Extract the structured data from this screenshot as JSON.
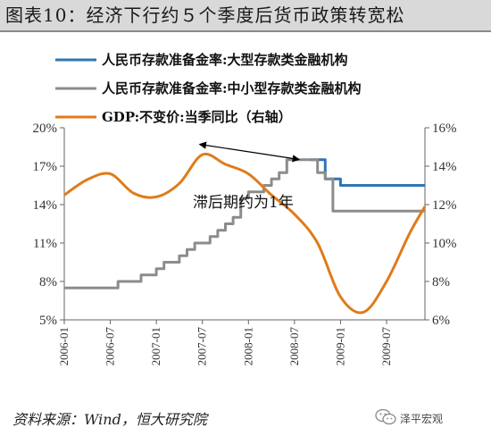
{
  "header": {
    "title": "图表10：经济下行约５个季度后货币政策转宽松"
  },
  "footer": {
    "source": "资料来源：Wind，恒大研究院",
    "brand": "泽平宏观"
  },
  "icons": {
    "brand_icon": "wechat-icon"
  },
  "chart_data": {
    "type": "line",
    "x_ticks": [
      "2006-01",
      "2006-07",
      "2007-01",
      "2007-07",
      "2008-01",
      "2008-07",
      "2009-01",
      "2009-07"
    ],
    "y_left": {
      "ticks": [
        "5%",
        "8%",
        "11%",
        "14%",
        "17%",
        "20%"
      ],
      "range": [
        5,
        20
      ],
      "unit": "%"
    },
    "y_right": {
      "ticks": [
        "6%",
        "8%",
        "10%",
        "12%",
        "14%",
        "16%"
      ],
      "range": [
        6,
        16
      ],
      "unit": "%"
    },
    "annotation": "滞后期约为1年",
    "series": [
      {
        "name": "人民币存款准备金率:大型存款类金融机构",
        "axis": "left",
        "color": "#2e75b6",
        "points": [
          [
            "2008-09",
            17.5
          ],
          [
            "2008-10",
            17.5
          ],
          [
            "2008-11",
            16.0
          ],
          [
            "2008-12",
            16.0
          ],
          [
            "2009-01",
            15.5
          ],
          [
            "2009-12",
            15.5
          ]
        ]
      },
      {
        "name": "人民币存款准备金率:中小型存款类金融机构",
        "axis": "left",
        "color": "#8c8c8c",
        "points": [
          [
            "2006-01",
            7.5
          ],
          [
            "2006-07",
            7.5
          ],
          [
            "2006-08",
            8.0
          ],
          [
            "2006-11",
            8.5
          ],
          [
            "2007-01",
            9.0
          ],
          [
            "2007-02",
            9.5
          ],
          [
            "2007-04",
            10.0
          ],
          [
            "2007-05",
            10.5
          ],
          [
            "2007-06",
            11.0
          ],
          [
            "2007-08",
            11.5
          ],
          [
            "2007-09",
            12.0
          ],
          [
            "2007-10",
            12.5
          ],
          [
            "2007-11",
            13.0
          ],
          [
            "2007-12",
            14.5
          ],
          [
            "2008-01",
            15.0
          ],
          [
            "2008-03",
            15.5
          ],
          [
            "2008-04",
            16.0
          ],
          [
            "2008-05",
            16.5
          ],
          [
            "2008-06",
            17.5
          ],
          [
            "2008-09",
            17.5
          ],
          [
            "2008-10",
            16.5
          ],
          [
            "2008-11",
            16.0
          ],
          [
            "2008-12",
            13.5
          ],
          [
            "2009-12",
            13.5
          ]
        ]
      },
      {
        "name": "GDP:不变价:当季同比（右轴）",
        "axis": "right",
        "color": "#e07b1a",
        "points": [
          [
            "2006-01",
            12.5
          ],
          [
            "2006-04",
            13.3
          ],
          [
            "2006-07",
            13.6
          ],
          [
            "2006-10",
            12.6
          ],
          [
            "2007-01",
            12.4
          ],
          [
            "2007-04",
            13.1
          ],
          [
            "2007-07",
            14.6
          ],
          [
            "2007-10",
            14.1
          ],
          [
            "2008-01",
            13.6
          ],
          [
            "2008-04",
            12.5
          ],
          [
            "2008-07",
            11.5
          ],
          [
            "2008-10",
            10.0
          ],
          [
            "2009-01",
            7.2
          ],
          [
            "2009-04",
            6.4
          ],
          [
            "2009-07",
            8.0
          ],
          [
            "2009-10",
            10.5
          ],
          [
            "2009-12",
            11.9
          ]
        ]
      }
    ],
    "arrow": {
      "from": "2007-07",
      "to": "2008-07"
    }
  }
}
